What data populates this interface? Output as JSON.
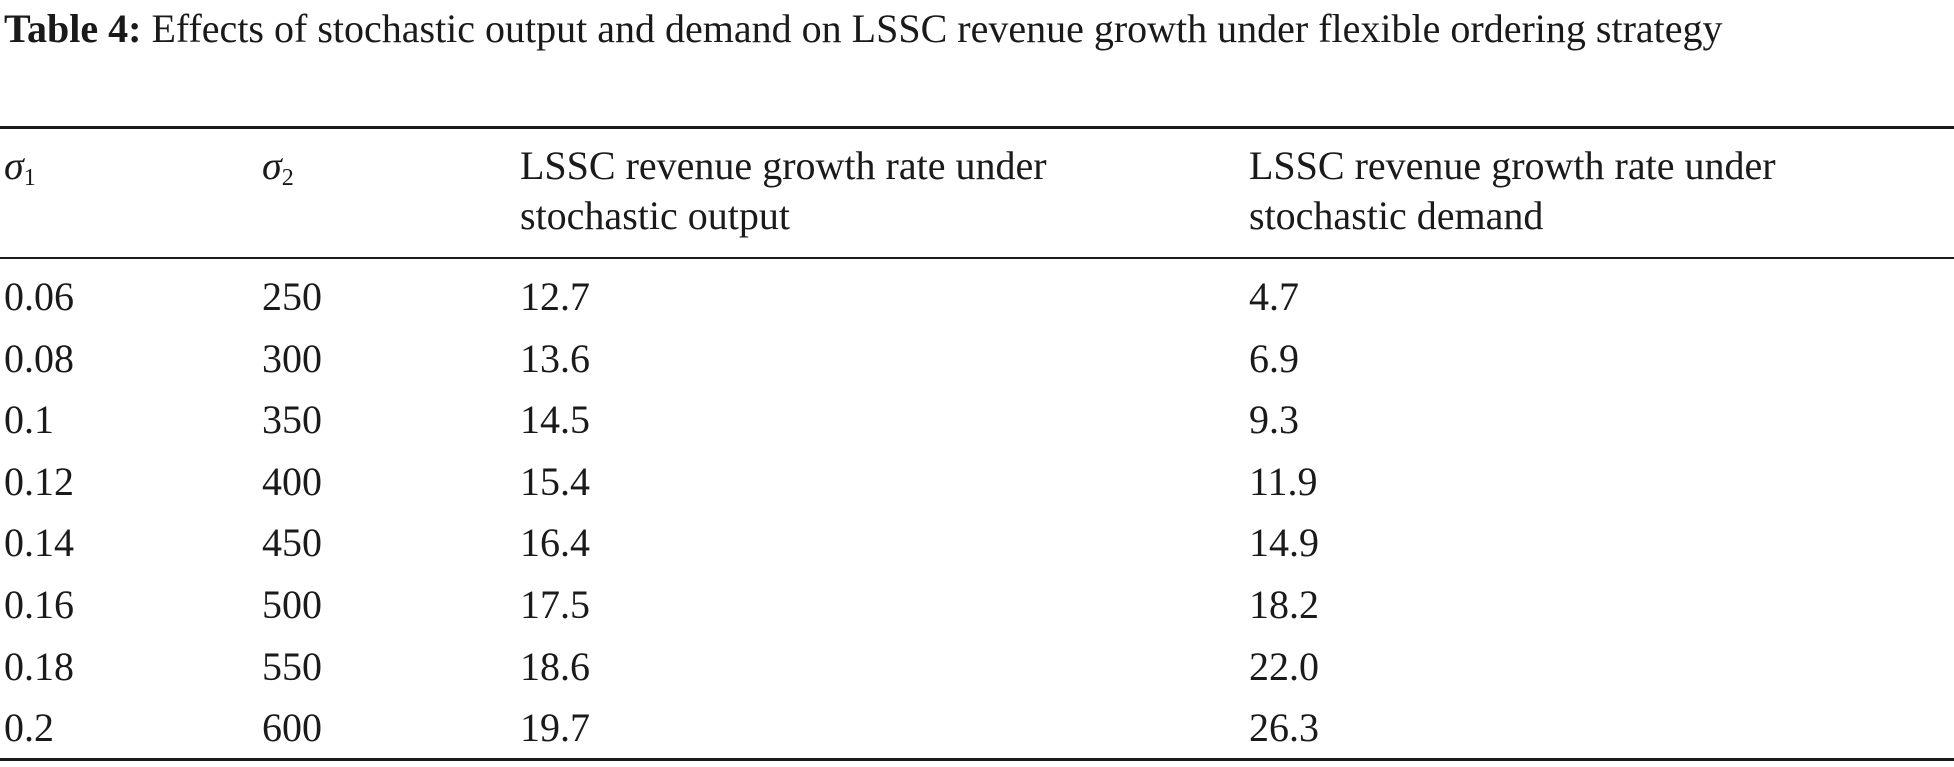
{
  "caption": {
    "label": "Table 4:",
    "text": " Effects of stochastic output and demand on LSSC revenue growth under flexible ordering strategy"
  },
  "table": {
    "headers": {
      "col1_symbol": "σ",
      "col1_sub": "1",
      "col2_symbol": "σ",
      "col2_sub": "2",
      "col3": "LSSC revenue growth rate under stochastic output",
      "col4": "LSSC revenue growth rate under stochastic demand"
    },
    "rows": [
      [
        "0.06",
        "250",
        "12.7",
        "4.7"
      ],
      [
        "0.08",
        "300",
        "13.6",
        "6.9"
      ],
      [
        "0.1",
        "350",
        "14.5",
        "9.3"
      ],
      [
        "0.12",
        "400",
        "15.4",
        "11.9"
      ],
      [
        "0.14",
        "450",
        "16.4",
        "14.9"
      ],
      [
        "0.16",
        "500",
        "17.5",
        "18.2"
      ],
      [
        "0.18",
        "550",
        "18.6",
        "22.0"
      ],
      [
        "0.2",
        "600",
        "19.7",
        "26.3"
      ]
    ]
  }
}
